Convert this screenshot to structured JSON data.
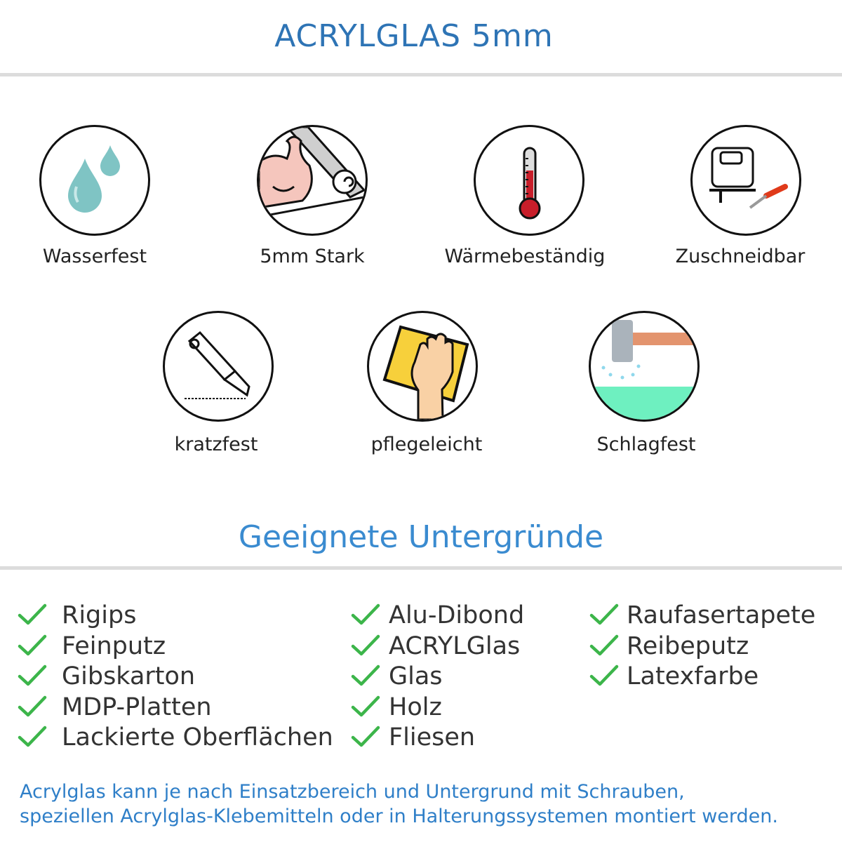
{
  "header": {
    "title": "ACRYLGLAS 5mm"
  },
  "features": [
    {
      "label": "Wasserfest",
      "icon": "water-drops-icon"
    },
    {
      "label": "5mm Stark",
      "icon": "strong-arm-icon"
    },
    {
      "label": "Wärmebeständig",
      "icon": "thermometer-icon"
    },
    {
      "label": "Zuschneidbar",
      "icon": "jigsaw-cutter-icon"
    },
    {
      "label": "kratzfest",
      "icon": "box-cutter-icon"
    },
    {
      "label": "pflegeleicht",
      "icon": "hand-sponge-icon"
    },
    {
      "label": "Schlagfest",
      "icon": "hammer-icon"
    }
  ],
  "surfaces": {
    "title": "Geeignete Untergründe",
    "columns": [
      [
        "Rigips",
        "Feinputz",
        "Gibskarton",
        "MDP-Platten",
        "Lackierte Oberflächen"
      ],
      [
        "Alu-Dibond",
        "ACRYLGlas",
        "Glas",
        "Holz",
        "Fliesen"
      ],
      [
        "Raufasertapete",
        "Reibeputz",
        "Latexfarbe"
      ]
    ],
    "check_color": "#3cb54a"
  },
  "footer": {
    "line1": "Acrylglas kann je nach Einsatzbereich und Untergrund mit Schrauben,",
    "line2": "speziellen Acrylglas-Klebemitteln oder in Halterungssystemen montiert werden."
  },
  "colors": {
    "title": "#2e74b5",
    "subtitle": "#3a8bd0",
    "footer": "#2f7fc8"
  }
}
